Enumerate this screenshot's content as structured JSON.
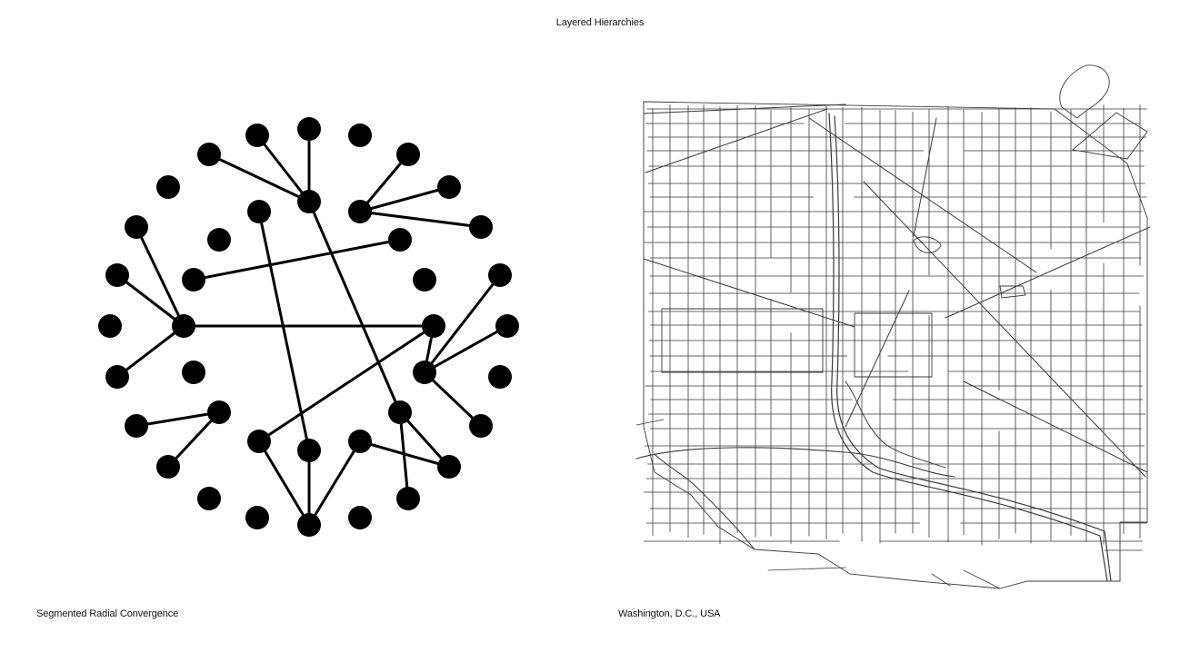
{
  "page": {
    "title": "Layered Hierarchies"
  },
  "panels": [
    {
      "caption": "Segmented Radial Convergence"
    },
    {
      "caption": "Washington, D.C., USA"
    }
  ],
  "colors": {
    "ink": "#000000",
    "street": "#3a3a3a",
    "background": "#ffffff"
  },
  "network": {
    "node_count": 38,
    "hubs": [
      "hub-upper",
      "hub-upper-right",
      "hub-left",
      "hub-right-mid",
      "hub-right",
      "hub-bottom"
    ]
  }
}
